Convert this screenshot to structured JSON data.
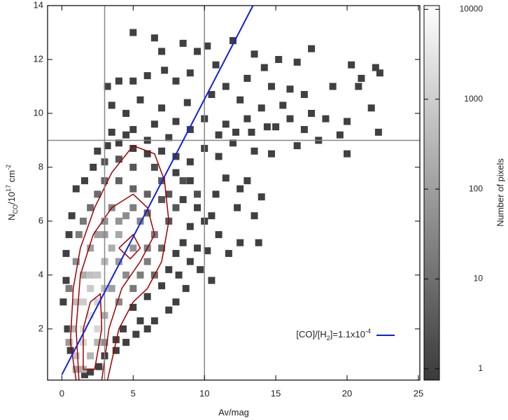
{
  "chart_data": {
    "type": "hist2d",
    "xlabel": "Av/mag",
    "ylabel": [
      "N",
      "CO",
      "/10",
      "17",
      " cm",
      "-2"
    ],
    "xlim": [
      -1,
      25.1
    ],
    "ylim": [
      0.1,
      14
    ],
    "xticks": [
      0,
      5,
      10,
      15,
      20,
      25
    ],
    "yticks": [
      2,
      4,
      6,
      8,
      10,
      12,
      14
    ],
    "colorbar": {
      "label": "Number of pixels",
      "clim": [
        0.75,
        11000
      ],
      "ticks": [
        1,
        10,
        100,
        1000,
        10000
      ],
      "log": true,
      "colormap": [
        "#3a3a3a",
        "#ffffff"
      ]
    },
    "guide_lines": {
      "x": [
        3,
        10
      ],
      "y": [
        9
      ],
      "color": "#888888"
    },
    "fit_line": {
      "name": [
        "[CO]/[H",
        "2",
        "]=1.1x10",
        "-4"
      ],
      "color": "#1020e0",
      "x": [
        0,
        13.4
      ],
      "y": [
        0.3,
        14
      ]
    },
    "contour_color": "#a00000",
    "contours": [
      [
        [
          1,
          0.1
        ],
        [
          0.6,
          1.5
        ],
        [
          0.8,
          3.5
        ],
        [
          1.3,
          5
        ],
        [
          2.3,
          6.5
        ],
        [
          3.5,
          7.8
        ],
        [
          5,
          8.8
        ],
        [
          6.5,
          8.5
        ],
        [
          7.2,
          7.5
        ],
        [
          7.5,
          6
        ],
        [
          7,
          4.5
        ],
        [
          6,
          3.5
        ],
        [
          5,
          3
        ],
        [
          4,
          2
        ],
        [
          3.2,
          0.1
        ]
      ],
      [
        [
          1.2,
          0.1
        ],
        [
          1,
          2
        ],
        [
          1.3,
          4
        ],
        [
          2.2,
          5.5
        ],
        [
          3.5,
          6.5
        ],
        [
          5,
          7
        ],
        [
          6,
          6.5
        ],
        [
          6.5,
          5.5
        ],
        [
          5.5,
          4.5
        ],
        [
          4.2,
          3.5
        ],
        [
          3.3,
          2
        ],
        [
          2.8,
          0.1
        ]
      ],
      [
        [
          1.5,
          0.5
        ],
        [
          1.5,
          2
        ],
        [
          2,
          3
        ],
        [
          2.7,
          3.3
        ],
        [
          2.8,
          2
        ],
        [
          2.3,
          0.5
        ],
        [
          1.5,
          0.5
        ]
      ],
      [
        [
          4,
          5
        ],
        [
          5,
          5.5
        ],
        [
          5.5,
          5
        ],
        [
          4.8,
          4.6
        ],
        [
          4,
          5
        ]
      ]
    ],
    "cells": [
      [
        5,
        13,
        1
      ],
      [
        6.5,
        12.8,
        1
      ],
      [
        7,
        12.3,
        1
      ],
      [
        8.5,
        12.6,
        1
      ],
      [
        9.5,
        12.3,
        1
      ],
      [
        10.2,
        12.5,
        1
      ],
      [
        12,
        12.7,
        1
      ],
      [
        13.5,
        12.2,
        1
      ],
      [
        14.2,
        11.7,
        1
      ],
      [
        15.2,
        12,
        1
      ],
      [
        16.5,
        11.9,
        1
      ],
      [
        17.5,
        12.4,
        1
      ],
      [
        20.3,
        11.8,
        1
      ],
      [
        21,
        11.3,
        1
      ],
      [
        22,
        11.7,
        1
      ],
      [
        22.3,
        11.5,
        1
      ],
      [
        19,
        11,
        1
      ],
      [
        20.8,
        11,
        1
      ],
      [
        17,
        10.7,
        1
      ],
      [
        16,
        10.9,
        1
      ],
      [
        14.7,
        11,
        1
      ],
      [
        13,
        11.3,
        1
      ],
      [
        11.5,
        11,
        1
      ],
      [
        10.8,
        11.8,
        1
      ],
      [
        9,
        11.5,
        1
      ],
      [
        8,
        11.2,
        1
      ],
      [
        7.2,
        11.6,
        1
      ],
      [
        6,
        11.4,
        1
      ],
      [
        5,
        11.2,
        1
      ],
      [
        4,
        11.2,
        1
      ],
      [
        3.2,
        11,
        1
      ],
      [
        3.5,
        10.3,
        1
      ],
      [
        4.5,
        10,
        1
      ],
      [
        5.5,
        10.5,
        1
      ],
      [
        7,
        10.2,
        1
      ],
      [
        8.8,
        10.4,
        1
      ],
      [
        10.5,
        10.7,
        1
      ],
      [
        12.5,
        10.5,
        1
      ],
      [
        14,
        10.2,
        1
      ],
      [
        15.5,
        10.3,
        1
      ],
      [
        17.5,
        10,
        1
      ],
      [
        18.5,
        9.8,
        1
      ],
      [
        20,
        9.7,
        1
      ],
      [
        21.7,
        10.2,
        1
      ],
      [
        22.2,
        9.3,
        1
      ],
      [
        19.5,
        9.2,
        1
      ],
      [
        17,
        9.4,
        1
      ],
      [
        15,
        9.5,
        1
      ],
      [
        13,
        9.8,
        1
      ],
      [
        11.5,
        9.6,
        1
      ],
      [
        10,
        9.8,
        1
      ],
      [
        9,
        9.4,
        1
      ],
      [
        8,
        9.7,
        1
      ],
      [
        6.5,
        9.6,
        1
      ],
      [
        5,
        9.4,
        1
      ],
      [
        3.5,
        9.3,
        1
      ],
      [
        20,
        8.5,
        1
      ],
      [
        16.5,
        8.8,
        1
      ],
      [
        14.7,
        8.5,
        1
      ],
      [
        13.5,
        8.6,
        1
      ],
      [
        12,
        8.9,
        1
      ],
      [
        11,
        8.4,
        1
      ],
      [
        10,
        8.7,
        1
      ],
      [
        9,
        8.2,
        1
      ],
      [
        13,
        7.5,
        1
      ],
      [
        12.5,
        7.2,
        1
      ],
      [
        11.5,
        7.6,
        1
      ],
      [
        14,
        6.9,
        1
      ],
      [
        10.8,
        7,
        1
      ],
      [
        13.5,
        6.2,
        1
      ],
      [
        12.3,
        6.5,
        1
      ],
      [
        11,
        5.5,
        1
      ],
      [
        10.5,
        6.2,
        1
      ],
      [
        12.5,
        5.2,
        1
      ],
      [
        13.8,
        5.2,
        1
      ],
      [
        11.7,
        4.8,
        1
      ],
      [
        10.2,
        4.9,
        1
      ],
      [
        9.7,
        4.2,
        1
      ],
      [
        9,
        4.5,
        1
      ],
      [
        10.5,
        3.8,
        1
      ],
      [
        8.7,
        3.5,
        1
      ],
      [
        8,
        3,
        1
      ],
      [
        7.5,
        2.7,
        1
      ],
      [
        6.5,
        2.3,
        1
      ],
      [
        6,
        2,
        1
      ],
      [
        5.2,
        1.8,
        1
      ],
      [
        4.5,
        1.5,
        1
      ],
      [
        3.8,
        1.2,
        1
      ],
      [
        3,
        1,
        1
      ],
      [
        2.6,
        0.6,
        1
      ],
      [
        2,
        0.4,
        1
      ],
      [
        1.6,
        0.3,
        1
      ],
      [
        1,
        7.2,
        1
      ],
      [
        0.7,
        6.2,
        1
      ],
      [
        0.5,
        5.5,
        1
      ],
      [
        0.3,
        4.8,
        1
      ],
      [
        0.3,
        3.8,
        1
      ],
      [
        0.1,
        3,
        1
      ],
      [
        0.4,
        2,
        1
      ],
      [
        0.6,
        1.2,
        1
      ],
      [
        1.6,
        7.5,
        1
      ],
      [
        2.2,
        8,
        1
      ],
      [
        2.5,
        8.6,
        1
      ],
      [
        3.2,
        8.8,
        1
      ],
      [
        4,
        8.9,
        1
      ],
      [
        5,
        8.7,
        1
      ],
      [
        6,
        8.5,
        1
      ],
      [
        7,
        8.6,
        1
      ],
      [
        8,
        8.4,
        1
      ],
      [
        8,
        7.8,
        1
      ],
      [
        9,
        7.5,
        1
      ],
      [
        8.5,
        6.8,
        1
      ],
      [
        9.5,
        6.5,
        1
      ],
      [
        10,
        6,
        1
      ],
      [
        9,
        5.8,
        1
      ],
      [
        8.5,
        5.2,
        1
      ],
      [
        9.5,
        5,
        1
      ],
      [
        8,
        4.8,
        1
      ],
      [
        7.5,
        4.2,
        1
      ],
      [
        8.2,
        4,
        1
      ],
      [
        7,
        3.6,
        1
      ],
      [
        6,
        3.2,
        1
      ],
      [
        5,
        2.8,
        1
      ],
      [
        5.5,
        2.3,
        1
      ],
      [
        4.3,
        2,
        1
      ],
      [
        3.8,
        1.6,
        1
      ],
      [
        11,
        9.2,
        1
      ],
      [
        12.2,
        9.3,
        1
      ],
      [
        13.3,
        9.3,
        1
      ],
      [
        14.4,
        9.5,
        1
      ],
      [
        16,
        9.8,
        1
      ],
      [
        18,
        9,
        1
      ],
      [
        7.5,
        9.1,
        1
      ],
      [
        6,
        9,
        1
      ],
      [
        4.5,
        9.2,
        1
      ],
      [
        1.2,
        5.5,
        20
      ],
      [
        1.5,
        6,
        15
      ],
      [
        2,
        6.5,
        10
      ],
      [
        2.5,
        7,
        8
      ],
      [
        3,
        7.5,
        6
      ],
      [
        4,
        7.5,
        5
      ],
      [
        5,
        7.2,
        6
      ],
      [
        6,
        7,
        5
      ],
      [
        7,
        6.8,
        3
      ],
      [
        7.5,
        6,
        3
      ],
      [
        3.5,
        6.5,
        30
      ],
      [
        4.5,
        6.2,
        40
      ],
      [
        5.5,
        6,
        30
      ],
      [
        6.5,
        5.5,
        15
      ],
      [
        7,
        5,
        8
      ],
      [
        3,
        5.5,
        80
      ],
      [
        4,
        5.5,
        150
      ],
      [
        5,
        5,
        60
      ],
      [
        6,
        4.5,
        20
      ],
      [
        6.5,
        4,
        8
      ],
      [
        1,
        4.5,
        40
      ],
      [
        1.5,
        4,
        200
      ],
      [
        2,
        3.5,
        800
      ],
      [
        2.5,
        3,
        1200
      ],
      [
        2,
        2.5,
        3000
      ],
      [
        1.5,
        2,
        2500
      ],
      [
        1.5,
        1.5,
        1500
      ],
      [
        1,
        1,
        600
      ],
      [
        0.8,
        2,
        300
      ],
      [
        1,
        3,
        400
      ],
      [
        2.5,
        4,
        600
      ],
      [
        3,
        4.5,
        300
      ],
      [
        3.5,
        3.5,
        100
      ],
      [
        3,
        2.5,
        200
      ],
      [
        2.5,
        1.5,
        300
      ],
      [
        2,
        1,
        300
      ],
      [
        4,
        3,
        30
      ],
      [
        4.5,
        4,
        40
      ],
      [
        5,
        3.5,
        15
      ],
      [
        3.5,
        5,
        200
      ],
      [
        2,
        5,
        100
      ],
      [
        2.5,
        5.5,
        100
      ],
      [
        4,
        4.5,
        80
      ],
      [
        5.5,
        4,
        20
      ],
      [
        1.5,
        3,
        900
      ],
      [
        2,
        4,
        500
      ],
      [
        3,
        3.5,
        400
      ],
      [
        2.5,
        2,
        1500
      ],
      [
        3,
        1.5,
        50
      ],
      [
        0.5,
        1.5,
        80
      ],
      [
        1,
        0.5,
        100
      ],
      [
        1.5,
        0.5,
        200
      ],
      [
        0.5,
        3.5,
        20
      ],
      [
        6,
        6.3,
        8
      ],
      [
        7,
        7.5,
        4
      ],
      [
        8,
        6.5,
        3
      ],
      [
        5,
        8,
        3
      ],
      [
        4,
        8.3,
        3
      ],
      [
        3,
        8.2,
        3
      ],
      [
        6.5,
        8,
        2
      ],
      [
        7.5,
        7,
        3
      ],
      [
        8.5,
        7.5,
        2
      ],
      [
        9.5,
        7,
        2
      ],
      [
        3,
        6,
        50
      ],
      [
        4,
        6,
        60
      ],
      [
        5,
        6.5,
        20
      ],
      [
        6,
        5,
        20
      ]
    ]
  }
}
